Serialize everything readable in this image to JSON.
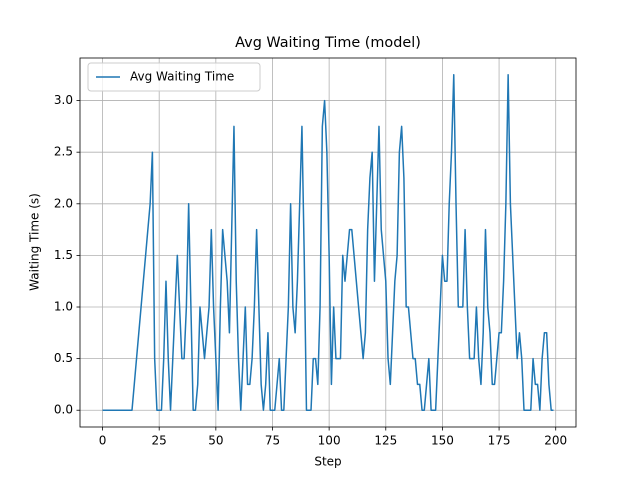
{
  "chart_data": {
    "type": "line",
    "title": "Avg Waiting Time (model)",
    "x_label": "Step",
    "y_label": "Waiting Time (s)",
    "x": [
      0,
      1,
      2,
      3,
      4,
      5,
      6,
      7,
      8,
      9,
      10,
      11,
      12,
      13,
      14,
      15,
      16,
      17,
      18,
      19,
      20,
      21,
      22,
      23,
      24,
      25,
      26,
      27,
      28,
      29,
      30,
      31,
      32,
      33,
      34,
      35,
      36,
      37,
      38,
      39,
      40,
      41,
      42,
      43,
      44,
      45,
      46,
      47,
      48,
      49,
      50,
      51,
      52,
      53,
      54,
      55,
      56,
      57,
      58,
      59,
      60,
      61,
      62,
      63,
      64,
      65,
      66,
      67,
      68,
      69,
      70,
      71,
      72,
      73,
      74,
      75,
      76,
      77,
      78,
      79,
      80,
      81,
      82,
      83,
      84,
      85,
      86,
      87,
      88,
      89,
      90,
      91,
      92,
      93,
      94,
      95,
      96,
      97,
      98,
      99,
      100,
      101,
      102,
      103,
      104,
      105,
      106,
      107,
      108,
      109,
      110,
      111,
      112,
      113,
      114,
      115,
      116,
      117,
      118,
      119,
      120,
      121,
      122,
      123,
      124,
      125,
      126,
      127,
      128,
      129,
      130,
      131,
      132,
      133,
      134,
      135,
      136,
      137,
      138,
      139,
      140,
      141,
      142,
      143,
      144,
      145,
      146,
      147,
      148,
      149,
      150,
      151,
      152,
      153,
      154,
      155,
      156,
      157,
      158,
      159,
      160,
      161,
      162,
      163,
      164,
      165,
      166,
      167,
      168,
      169,
      170,
      171,
      172,
      173,
      174,
      175,
      176,
      177,
      178,
      179,
      180,
      181,
      182,
      183,
      184,
      185,
      186,
      187,
      188,
      189,
      190,
      191,
      192,
      193,
      194,
      195,
      196,
      197,
      198,
      199
    ],
    "series": [
      {
        "name": "Avg Waiting Time",
        "color": "#1f77b4",
        "values": [
          0,
          0,
          0,
          0,
          0,
          0,
          0,
          0,
          0,
          0,
          0,
          0,
          0,
          0,
          0.25,
          0.5,
          0.75,
          1,
          1.25,
          1.5,
          1.75,
          2,
          2.5,
          0.5,
          0,
          0,
          0,
          0.5,
          1.25,
          0.5,
          0,
          0.5,
          1,
          1.5,
          1,
          0.5,
          0.5,
          1,
          2,
          1,
          0,
          0,
          0.25,
          1,
          0.75,
          0.5,
          0.75,
          1,
          1.75,
          1,
          0.5,
          0,
          1,
          1.75,
          1.5,
          1.25,
          0.75,
          1.75,
          2.75,
          1.25,
          0.5,
          0,
          0.5,
          1,
          0.25,
          0.25,
          0.5,
          1,
          1.75,
          1,
          0.25,
          0,
          0.25,
          0.75,
          0,
          0,
          0,
          0.25,
          0.5,
          0,
          0,
          0.5,
          1,
          2,
          1,
          0.75,
          1.25,
          2,
          2.75,
          1.5,
          0,
          0,
          0,
          0.5,
          0.5,
          0.25,
          1,
          2.75,
          3,
          2.5,
          1.5,
          0.25,
          1,
          0.5,
          0.5,
          0.5,
          1.5,
          1.25,
          1.5,
          1.75,
          1.75,
          1.5,
          1.25,
          1,
          0.75,
          0.5,
          0.75,
          1.75,
          2.25,
          2.5,
          1.25,
          2,
          2.75,
          1.75,
          1.5,
          1.25,
          0.5,
          0.25,
          0.75,
          1.25,
          1.5,
          2.5,
          2.75,
          2.25,
          1,
          1,
          0.75,
          0.5,
          0.5,
          0.25,
          0.25,
          0,
          0,
          0.25,
          0.5,
          0,
          0,
          0,
          0.5,
          1,
          1.5,
          1.25,
          1.25,
          2,
          2.5,
          3.25,
          2,
          1,
          1,
          1,
          1.75,
          1,
          0.5,
          0.5,
          0.5,
          1,
          0.5,
          0.25,
          0.75,
          1.75,
          1,
          0.75,
          0.25,
          0.25,
          0.5,
          0.75,
          0.75,
          1.25,
          2,
          3.25,
          2,
          1.5,
          1,
          0.5,
          0.75,
          0.5,
          0,
          0,
          0,
          0,
          0.5,
          0.25,
          0.25,
          0,
          0.5,
          0.75,
          0.75,
          0.25,
          0,
          0
        ]
      }
    ],
    "xlim": [
      -9.95,
      208.95
    ],
    "ylim": [
      -0.1625,
      3.4125
    ],
    "xticks": [
      0,
      25,
      50,
      75,
      100,
      125,
      150,
      175,
      200
    ],
    "yticks": [
      {
        "value": 0,
        "label": "0.0"
      },
      {
        "value": 0.5,
        "label": "0.5"
      },
      {
        "value": 1,
        "label": "1.0"
      },
      {
        "value": 1.5,
        "label": "1.5"
      },
      {
        "value": 2,
        "label": "2.0"
      },
      {
        "value": 2.5,
        "label": "2.5"
      },
      {
        "value": 3,
        "label": "3.0"
      }
    ],
    "grid": true,
    "legend": "upper-left"
  }
}
